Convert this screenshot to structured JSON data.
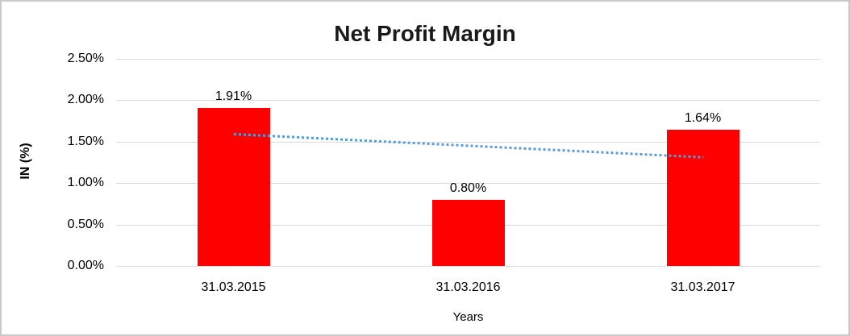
{
  "chart": {
    "title": "Net Profit Margin",
    "x_axis_title": "Years",
    "y_axis_title": "IN (%)"
  },
  "chart_data": {
    "type": "bar",
    "title": "Net Profit Margin",
    "xlabel": "Years",
    "ylabel": "IN (%)",
    "categories": [
      "31.03.2015",
      "31.03.2016",
      "31.03.2017"
    ],
    "values": [
      1.91,
      0.8,
      1.64
    ],
    "data_labels": [
      "1.91%",
      "0.80%",
      "1.64%"
    ],
    "ylim": [
      0,
      2.5
    ],
    "yticks": [
      {
        "value": 0.0,
        "label": "0.00%"
      },
      {
        "value": 0.5,
        "label": "0.50%"
      },
      {
        "value": 1.0,
        "label": "1.00%"
      },
      {
        "value": 1.5,
        "label": "1.50%"
      },
      {
        "value": 2.0,
        "label": "2.00%"
      },
      {
        "value": 2.5,
        "label": "2.50%"
      }
    ],
    "grid": true,
    "legend": "none",
    "bar_color": "#ff0000",
    "trendline": {
      "type": "linear",
      "style": "dotted",
      "color": "#5b9bd5",
      "start_value": 1.59,
      "end_value": 1.31
    }
  }
}
